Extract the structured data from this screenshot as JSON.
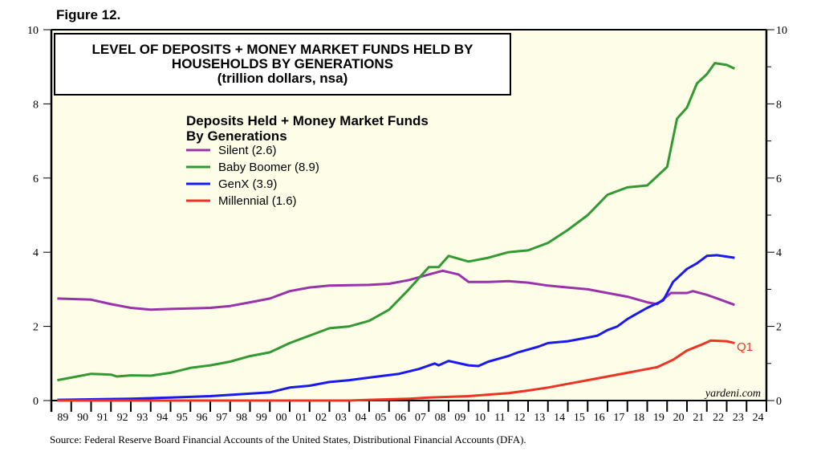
{
  "figure_label": "Figure 12.",
  "source": "Source: Federal Reserve Board Financial Accounts of the United States, Distributional Financial Accounts (DFA).",
  "chart_data": {
    "type": "line",
    "title": [
      "LEVEL OF DEPOSITS + MONEY MARKET FUNDS HELD BY",
      "HOUSEHOLDS BY GENERATIONS",
      "(trillion dollars, nsa)"
    ],
    "legend_title": [
      "Deposits Held + Money Market Funds",
      "By Generations"
    ],
    "legend_placement": "upper-left",
    "watermark": "yardeni.com",
    "annotation": "Q1",
    "background": "#fefee8",
    "xlim": [
      1989,
      2025
    ],
    "ylim": [
      0,
      10
    ],
    "yticks": [
      0,
      2,
      4,
      6,
      8,
      10
    ],
    "xtick_labels": [
      "89",
      "90",
      "91",
      "92",
      "93",
      "94",
      "95",
      "96",
      "97",
      "98",
      "99",
      "00",
      "01",
      "02",
      "03",
      "04",
      "05",
      "06",
      "07",
      "08",
      "09",
      "10",
      "11",
      "12",
      "13",
      "14",
      "15",
      "16",
      "17",
      "18",
      "19",
      "20",
      "21",
      "22",
      "23",
      "24"
    ],
    "series": [
      {
        "name": "Silent (2.6)",
        "color": "#9933aa",
        "x": [
          1989.3,
          1991,
          1992,
          1993,
          1994,
          1995,
          1997,
          1998,
          1999,
          2000,
          2001,
          2002,
          2003,
          2005,
          2006,
          2007,
          2008,
          2008.7,
          2009.5,
          2010,
          2011,
          2012,
          2013,
          2014,
          2015,
          2016,
          2017,
          2018,
          2019,
          2019.5,
          2020.2,
          2021,
          2021.3,
          2022,
          2022.8,
          2023.4
        ],
        "y": [
          2.75,
          2.72,
          2.6,
          2.5,
          2.45,
          2.47,
          2.5,
          2.55,
          2.65,
          2.75,
          2.95,
          3.05,
          3.1,
          3.12,
          3.15,
          3.25,
          3.4,
          3.5,
          3.4,
          3.2,
          3.2,
          3.22,
          3.18,
          3.1,
          3.05,
          3.0,
          2.9,
          2.8,
          2.65,
          2.6,
          2.9,
          2.9,
          2.95,
          2.85,
          2.7,
          2.58
        ]
      },
      {
        "name": "Baby Boomer (8.9)",
        "color": "#339933",
        "x": [
          1989.3,
          1990,
          1991,
          1992,
          1992.3,
          1993,
          1994,
          1995,
          1996,
          1997,
          1998,
          1999,
          2000,
          2001,
          2002,
          2003,
          2004,
          2005,
          2006,
          2007,
          2008,
          2008.5,
          2009,
          2010,
          2011,
          2012,
          2013,
          2014,
          2015,
          2016,
          2017,
          2018,
          2019,
          2019.5,
          2020,
          2020.5,
          2021,
          2021.5,
          2022,
          2022.4,
          2023,
          2023.4
        ],
        "y": [
          0.55,
          0.62,
          0.72,
          0.7,
          0.65,
          0.68,
          0.67,
          0.75,
          0.88,
          0.95,
          1.05,
          1.2,
          1.3,
          1.55,
          1.75,
          1.95,
          2.0,
          2.15,
          2.45,
          3.0,
          3.6,
          3.6,
          3.9,
          3.75,
          3.85,
          4.0,
          4.05,
          4.25,
          4.6,
          5.0,
          5.55,
          5.75,
          5.8,
          6.05,
          6.3,
          7.6,
          7.9,
          8.55,
          8.8,
          9.1,
          9.05,
          8.95
        ]
      },
      {
        "name": "GenX (3.9)",
        "color": "#1a1aee",
        "x": [
          1989.3,
          1993,
          1995,
          1997,
          1998.5,
          2000,
          2001,
          2002,
          2003,
          2004,
          2005,
          2006.5,
          2007.5,
          2008.3,
          2008.5,
          2009,
          2010,
          2010.5,
          2011,
          2012,
          2012.5,
          2013.5,
          2014,
          2015,
          2016,
          2016.5,
          2017,
          2017.5,
          2018,
          2018.5,
          2019,
          2019.8,
          2020.3,
          2021,
          2021.5,
          2022,
          2022.5,
          2023.4
        ],
        "y": [
          0.02,
          0.05,
          0.08,
          0.12,
          0.17,
          0.22,
          0.35,
          0.4,
          0.5,
          0.55,
          0.62,
          0.72,
          0.85,
          1.0,
          0.95,
          1.07,
          0.95,
          0.93,
          1.05,
          1.2,
          1.3,
          1.45,
          1.55,
          1.6,
          1.7,
          1.75,
          1.9,
          2.0,
          2.2,
          2.35,
          2.5,
          2.7,
          3.2,
          3.55,
          3.7,
          3.9,
          3.92,
          3.85
        ]
      },
      {
        "name": "Millennial (1.6)",
        "color": "#ee3322",
        "x": [
          1989.3,
          2004,
          2005,
          2007,
          2008,
          2010,
          2012,
          2013,
          2014,
          2015,
          2016,
          2017,
          2018,
          2019,
          2019.5,
          2020.3,
          2021,
          2021.7,
          2022.2,
          2023,
          2023.4
        ],
        "y": [
          0,
          0,
          0.02,
          0.05,
          0.08,
          0.12,
          0.2,
          0.27,
          0.35,
          0.45,
          0.55,
          0.65,
          0.75,
          0.85,
          0.9,
          1.1,
          1.35,
          1.5,
          1.62,
          1.6,
          1.55
        ]
      }
    ]
  }
}
